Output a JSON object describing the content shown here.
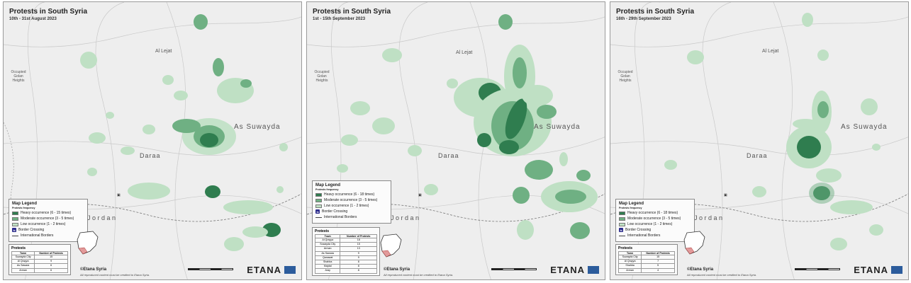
{
  "colors": {
    "heavy": "#2f7d4f",
    "moderate": "#6fb083",
    "low": "#bfe0c4",
    "map_bg": "#eeeeee",
    "border_crossing": "#2c2c8c"
  },
  "panels": [
    {
      "title": "Protests in South Syria",
      "subtitle": "10th - 31st August 2023",
      "places": {
        "lejat": "Al Lejat",
        "golan": "Occupied Golan Heights",
        "suwayda": "As Suwayda",
        "daraa": "Daraa",
        "jordan": "J o r d a n"
      },
      "legend": {
        "title": "Map Legend",
        "subtitle": "Protests frequency",
        "heavy": "Heavy occurrence (6 - 15 times)",
        "moderate": "Moderate occurrence (3 - 5 times)",
        "low": "Low occurrence (1 - 2 times)",
        "border_crossing": "Border Crossing",
        "borders": "International Borders"
      },
      "table": {
        "title": "Protests",
        "headers": [
          "Town",
          "Number of Protests"
        ],
        "rows": [
          [
            "Suwayda City",
            "15"
          ],
          [
            "Al Qrayya",
            "9"
          ],
          [
            "As Sawara",
            "6"
          ],
          [
            "Arman",
            "6"
          ]
        ]
      },
      "credit": "©Etana Syria",
      "credit_note": "All reproduced content must be credited to Etana Syria.",
      "brand": "ETANA"
    },
    {
      "title": "Protests in South Syria",
      "subtitle": "1st - 15th September 2023",
      "places": {
        "lejat": "Al Lejat",
        "golan": "Occupied Golan Heights",
        "suwayda": "As Suwayda",
        "daraa": "Daraa",
        "jordan": "J o r d a n"
      },
      "legend": {
        "title": "Map Legend",
        "subtitle": "Protests frequency",
        "heavy": "Heavy occurrence (6 - 18 times)",
        "moderate": "Moderate occurrence (3 - 5 times)",
        "low": "Low occurrence (1 - 2 times)",
        "border_crossing": "Border Crossing",
        "borders": "International Borders"
      },
      "table": {
        "title": "Protests",
        "headers": [
          "Town",
          "Number of Protests"
        ],
        "rows": [
          [
            "Al Qrayya",
            "18"
          ],
          [
            "Suwayda City",
            "15"
          ],
          [
            "Arman",
            "13"
          ],
          [
            "As Sawara",
            "9"
          ],
          [
            "Qanawat",
            "9"
          ],
          [
            "Shahba",
            "8"
          ],
          [
            "Majdal",
            "8"
          ],
          [
            "Aray",
            "8"
          ]
        ]
      },
      "credit": "©Etana Syria",
      "credit_note": "All reproduced content must be credited to Etana Syria.",
      "brand": "ETANA"
    },
    {
      "title": "Protests in South Syria",
      "subtitle": "16th - 29th September 2023",
      "places": {
        "lejat": "Al Lejat",
        "golan": "Occupied Golan Heights",
        "suwayda": "As Suwayda",
        "daraa": "Daraa",
        "jordan": "J o r d a n"
      },
      "legend": {
        "title": "Map Legend",
        "subtitle": "Protests frequency",
        "heavy": "Heavy occurrence (6 - 18 times)",
        "moderate": "Moderate occurrence (3 - 5 times)",
        "low": "Low occurrence (1 - 2 times)",
        "border_crossing": "Border Crossing",
        "borders": "International Borders"
      },
      "table": {
        "title": "Protests",
        "headers": [
          "Town",
          "Number of Protests"
        ],
        "rows": [
          [
            "Suwayda City",
            "15"
          ],
          [
            "Al Qrayya",
            "7"
          ],
          [
            "Shahba",
            "5"
          ],
          [
            "Arman",
            "4"
          ]
        ]
      },
      "credit": "©Etana Syria",
      "credit_note": "All reproduced content must be credited to Etana Syria.",
      "brand": "ETANA"
    }
  ]
}
